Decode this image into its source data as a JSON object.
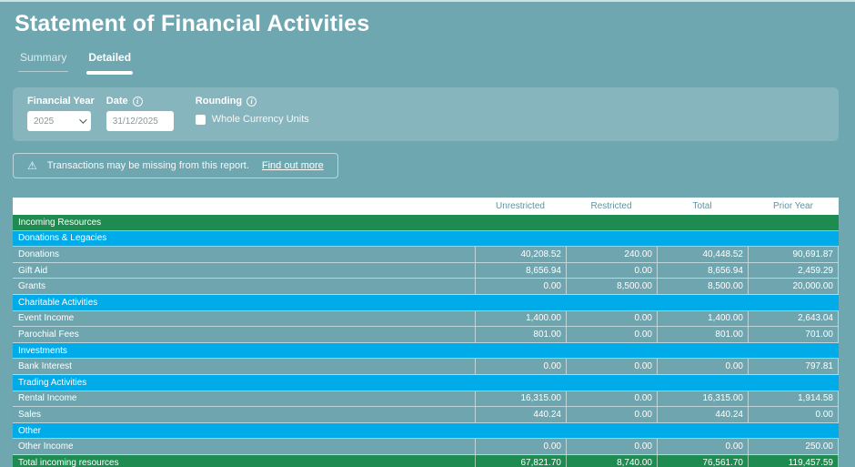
{
  "page": {
    "title": "Statement of Financial Activities"
  },
  "tabs": [
    {
      "label": "Summary",
      "active": false
    },
    {
      "label": "Detailed",
      "active": true
    }
  ],
  "filters": {
    "financial_year": {
      "label": "Financial Year",
      "value": "2025"
    },
    "date": {
      "label": "Date",
      "value": "31/12/2025",
      "info_icon": "info-icon"
    },
    "rounding": {
      "label": "Rounding",
      "checkbox_label": "Whole Currency Units",
      "checked": false,
      "info_icon": "info-icon"
    }
  },
  "warning": {
    "icon": "warning-triangle-icon",
    "text": "Transactions may be missing from this report.",
    "link": "Find out more"
  },
  "table": {
    "columns": [
      "",
      "Unrestricted",
      "Restricted",
      "Total",
      "Prior Year"
    ],
    "rows": [
      {
        "type": "section-green",
        "label": "Incoming Resources"
      },
      {
        "type": "section-blue",
        "label": "Donations & Legacies"
      },
      {
        "type": "data",
        "label": "Donations",
        "values": [
          "40,208.52",
          "240.00",
          "40,448.52",
          "90,691.87"
        ]
      },
      {
        "type": "data",
        "label": "Gift Aid",
        "values": [
          "8,656.94",
          "0.00",
          "8,656.94",
          "2,459.29"
        ]
      },
      {
        "type": "data",
        "label": "Grants",
        "values": [
          "0.00",
          "8,500.00",
          "8,500.00",
          "20,000.00"
        ]
      },
      {
        "type": "section-blue",
        "label": "Charitable Activities"
      },
      {
        "type": "data",
        "label": "Event Income",
        "values": [
          "1,400.00",
          "0.00",
          "1,400.00",
          "2,643.04"
        ]
      },
      {
        "type": "data",
        "label": "Parochial Fees",
        "values": [
          "801.00",
          "0.00",
          "801.00",
          "701.00"
        ]
      },
      {
        "type": "section-blue",
        "label": "Investments"
      },
      {
        "type": "data",
        "label": "Bank Interest",
        "values": [
          "0.00",
          "0.00",
          "0.00",
          "797.81"
        ]
      },
      {
        "type": "section-blue",
        "label": "Trading Activities"
      },
      {
        "type": "data",
        "label": "Rental Income",
        "values": [
          "16,315.00",
          "0.00",
          "16,315.00",
          "1,914.58"
        ]
      },
      {
        "type": "data",
        "label": "Sales",
        "values": [
          "440.24",
          "0.00",
          "440.24",
          "0.00"
        ]
      },
      {
        "type": "section-blue",
        "label": "Other"
      },
      {
        "type": "data",
        "label": "Other Income",
        "values": [
          "0.00",
          "0.00",
          "0.00",
          "250.00"
        ]
      },
      {
        "type": "total-green",
        "label": "Total incoming resources",
        "values": [
          "67,821.70",
          "8,740.00",
          "76,561.70",
          "119,457.59"
        ]
      }
    ]
  },
  "colors": {
    "page_bg": "#6fa7b1",
    "panel_bg": "#87b5be",
    "section_green": "#1e8b51",
    "section_blue": "#00abe9",
    "data_row_bg": "#6fa5af",
    "header_text": "#5d93a3",
    "white": "#ffffff"
  }
}
